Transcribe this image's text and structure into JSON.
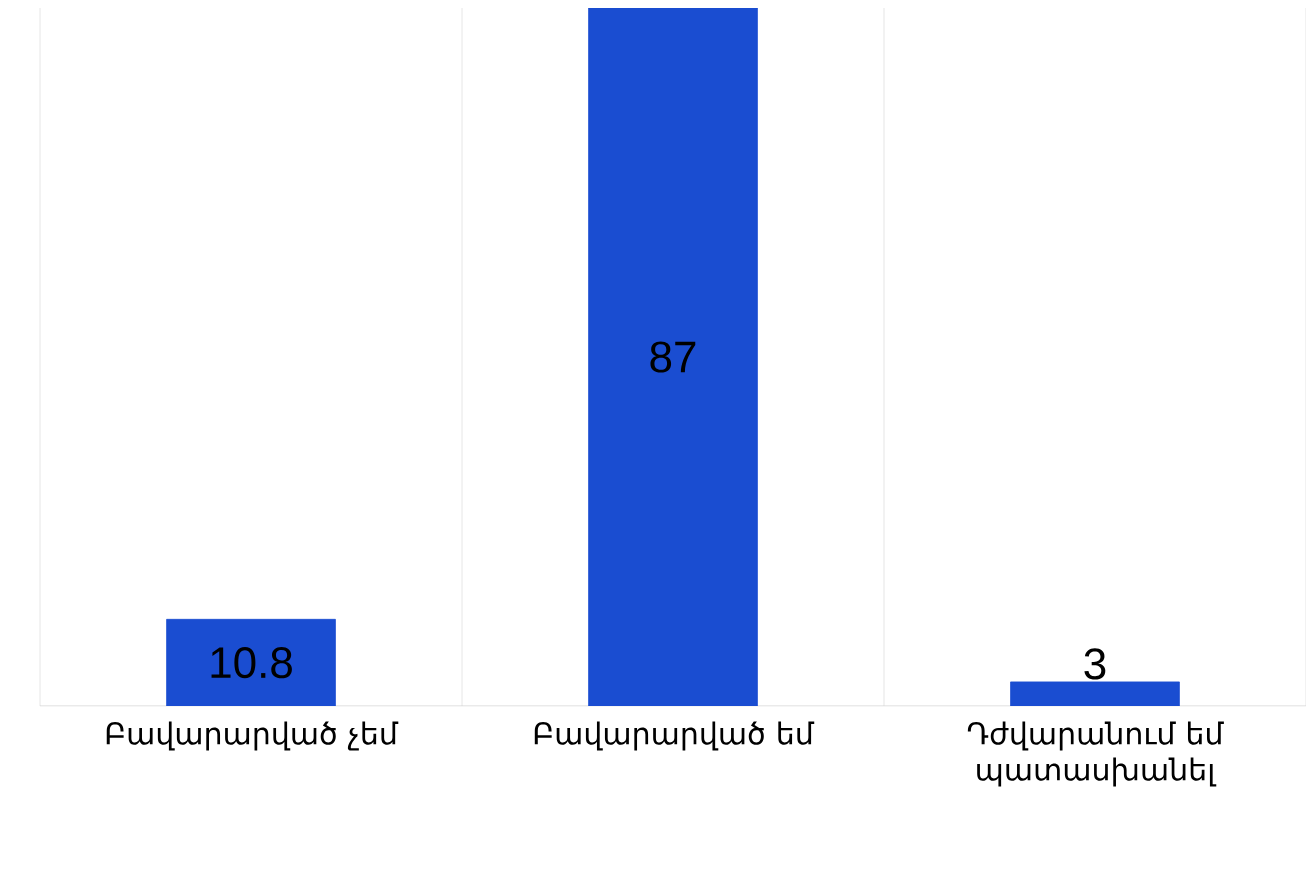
{
  "chart_data": {
    "type": "bar",
    "categories": [
      "Բավարարված չեմ",
      "Բավարարված եմ",
      "Դժվարանում եմ պատասխանել"
    ],
    "values": [
      10.8,
      87,
      3
    ],
    "color": "#1a4dd1",
    "data_labels": true,
    "grid": "x",
    "tick_labels": "x"
  }
}
